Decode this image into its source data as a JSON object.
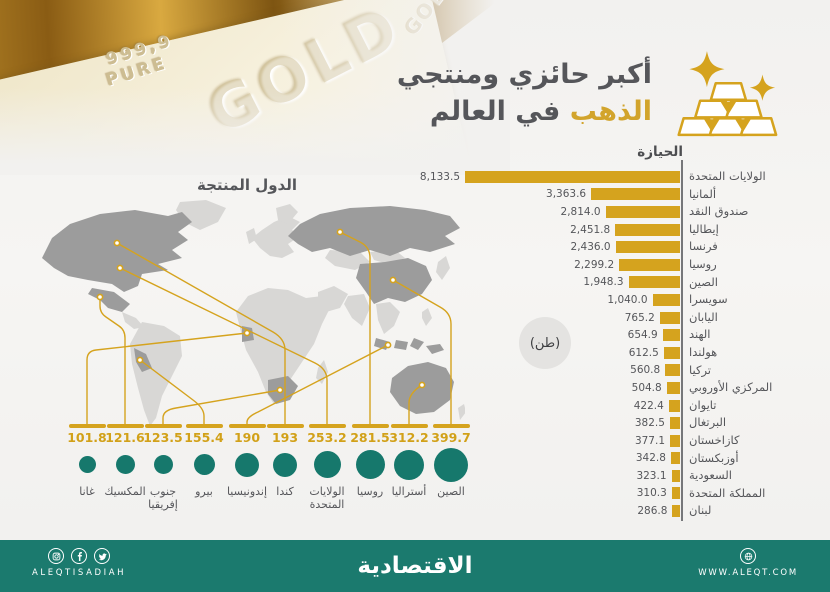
{
  "colors": {
    "gold": "#d5a31e",
    "teal": "#16786c",
    "footer_teal": "#1b7a6e",
    "text_gray": "#55565a",
    "map_light": "#d8d7d5",
    "map_dark": "#9c9c9c"
  },
  "photo": {
    "purity_line1": "999,9",
    "purity_line2": "PURE",
    "gold_stamp": "GOLD",
    "gold_corner_stamp": "GOL"
  },
  "header": {
    "title_line1": "أكبر حائزي ومنتجي",
    "title_gold_word": "الذهب",
    "title_line2_rest": "في العالم"
  },
  "holdings": {
    "title": "الحيازة",
    "unit_badge": "(طن)"
  },
  "producers_section": {
    "title": "الدول المنتجة"
  },
  "chart_data": [
    {
      "type": "bar",
      "orientation": "horizontal",
      "title": "الحيازة",
      "unit": "طن",
      "legend_position": "none",
      "grid": false,
      "xlim": [
        0,
        8500
      ],
      "categories": [
        "الولايات المتحدة",
        "ألمانيا",
        "صندوق النقد",
        "إيطاليا",
        "فرنسا",
        "روسيا",
        "الصين",
        "سويسرا",
        "اليابان",
        "الهند",
        "هولندا",
        "تركيا",
        "المركزي الأوروبي",
        "تايوان",
        "البرتغال",
        "كازاخستان",
        "أوزبكستان",
        "السعودية",
        "المملكة المتحدة",
        "لبنان"
      ],
      "values": [
        8133.5,
        3363.6,
        2814.0,
        2451.8,
        2436.0,
        2299.2,
        1948.3,
        1040.0,
        765.2,
        654.9,
        612.5,
        560.8,
        504.8,
        422.4,
        382.5,
        377.1,
        342.8,
        323.1,
        310.3,
        286.8
      ],
      "value_labels": [
        "8,133.5",
        "3,363.6",
        "2,814.0",
        "2,451.8",
        "2,436.0",
        "2,299.2",
        "1,948.3",
        "1,040.0",
        "765.2",
        "654.9",
        "612.5",
        "560.8",
        "504.8",
        "422.4",
        "382.5",
        "377.1",
        "342.8",
        "323.1",
        "310.3",
        "286.8"
      ],
      "bar_color": "#d5a31e"
    },
    {
      "type": "bubble",
      "title": "الدول المنتجة",
      "unit": "طن",
      "categories": [
        "غانا",
        "المكسيك",
        "جنوب إفريقيا",
        "بيرو",
        "إندونيسيا",
        "كندا",
        "الولايات المتحدة",
        "روسيا",
        "أستراليا",
        "الصين"
      ],
      "values": [
        101.8,
        121.6,
        123.5,
        155.4,
        190,
        193,
        253.2,
        281.5,
        312.2,
        399.7
      ],
      "value_labels": [
        "101.8",
        "121.6",
        "123.5",
        "155.4",
        "190",
        "193",
        "253.2",
        "281.5",
        "312.2",
        "399.7"
      ],
      "bubble_color": "#16786c",
      "value_color": "#d2a119"
    }
  ],
  "footer": {
    "handle": "ALEQTISADIAH",
    "logo": "الاقتصادية",
    "website": "WWW.ALEQT.COM",
    "social_icons": [
      "instagram-icon",
      "facebook-icon",
      "twitter-icon"
    ],
    "right_icon": "globe-icon"
  }
}
